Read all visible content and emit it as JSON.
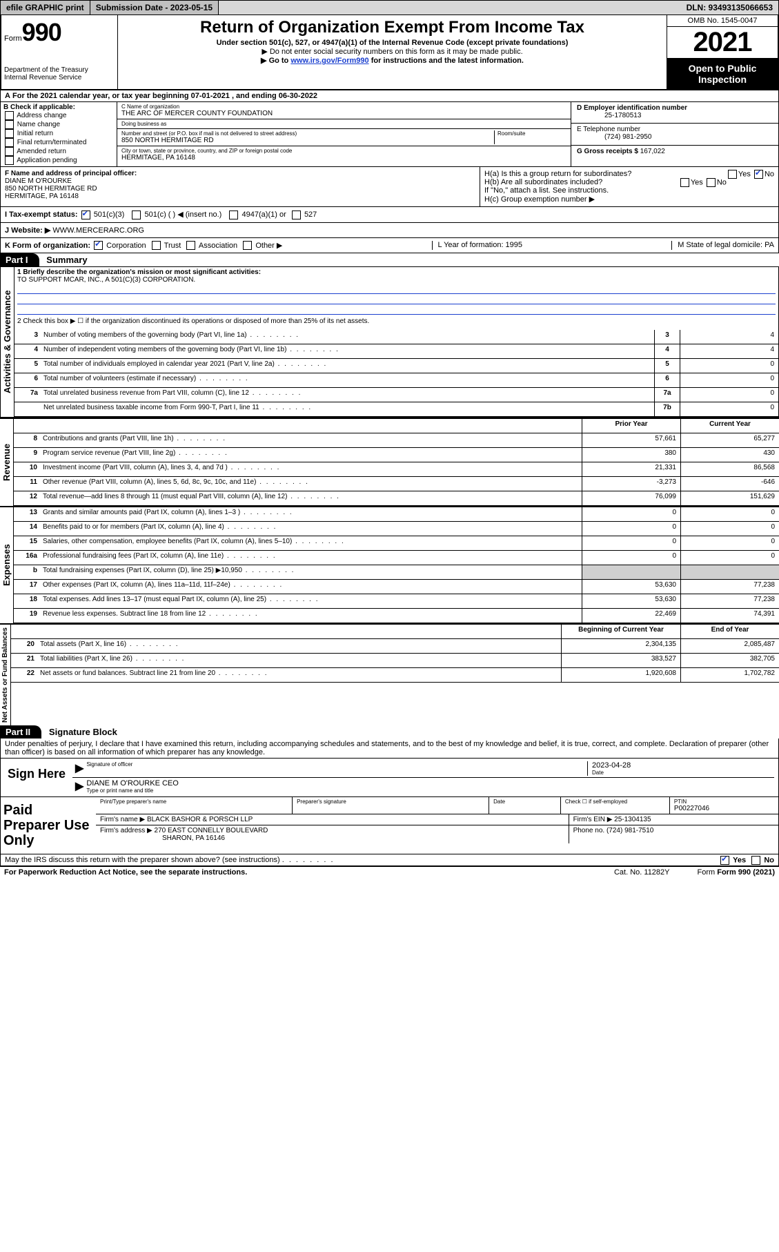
{
  "topbar": {
    "efile": "efile GRAPHIC print",
    "submission": "Submission Date - 2023-05-15",
    "dln": "DLN: 93493135066653"
  },
  "header": {
    "form_prefix": "Form",
    "form_num": "990",
    "dept": "Department of the Treasury",
    "irs": "Internal Revenue Service",
    "title": "Return of Organization Exempt From Income Tax",
    "sub": "Under section 501(c), 527, or 4947(a)(1) of the Internal Revenue Code (except private foundations)",
    "note1": "▶ Do not enter social security numbers on this form as it may be made public.",
    "note2_pre": "▶ Go to ",
    "note2_link": "www.irs.gov/Form990",
    "note2_post": " for instructions and the latest information.",
    "omb": "OMB No. 1545-0047",
    "year": "2021",
    "inspect": "Open to Public Inspection"
  },
  "rowA": "For the 2021 calendar year, or tax year beginning 07-01-2021  , and ending 06-30-2022",
  "boxB": {
    "label": "B Check if applicable:",
    "items": [
      "Address change",
      "Name change",
      "Initial return",
      "Final return/terminated",
      "Amended return",
      "Application pending"
    ]
  },
  "boxC": {
    "name_label": "C Name of organization",
    "name": "THE ARC OF MERCER COUNTY FOUNDATION",
    "dba_label": "Doing business as",
    "street_label": "Number and street (or P.O. box if mail is not delivered to street address)",
    "room_label": "Room/suite",
    "street": "850 NORTH HERMITAGE RD",
    "city_label": "City or town, state or province, country, and ZIP or foreign postal code",
    "city": "HERMITAGE, PA  16148"
  },
  "boxD": {
    "label": "D Employer identification number",
    "val": "25-1780513"
  },
  "boxE": {
    "label": "E Telephone number",
    "val": "(724) 981-2950"
  },
  "boxG": {
    "label": "G Gross receipts $",
    "val": "167,022"
  },
  "boxF": {
    "label": "F Name and address of principal officer:",
    "name": "DIANE M O'ROURKE",
    "addr1": "850 NORTH HERMITAGE RD",
    "addr2": "HERMITAGE, PA  16148"
  },
  "boxH": {
    "a": "H(a)  Is this a group return for subordinates?",
    "b": "H(b)  Are all subordinates included?",
    "b_note": "If \"No,\" attach a list. See instructions.",
    "c": "H(c)  Group exemption number ▶",
    "yes": "Yes",
    "no": "No"
  },
  "rowI": {
    "label": "I   Tax-exempt status:",
    "opts": [
      "501(c)(3)",
      "501(c) (   ) ◀ (insert no.)",
      "4947(a)(1) or",
      "527"
    ]
  },
  "rowJ": {
    "label": "J   Website: ▶",
    "val": "WWW.MERCERARC.ORG"
  },
  "rowK": {
    "label": "K Form of organization:",
    "opts": [
      "Corporation",
      "Trust",
      "Association",
      "Other ▶"
    ],
    "L": "L Year of formation: 1995",
    "M": "M State of legal domicile: PA"
  },
  "part1": {
    "num": "Part I",
    "title": "Summary"
  },
  "mission": {
    "q": "1   Briefly describe the organization's mission or most significant activities:",
    "a": "TO SUPPORT MCAR, INC., A 501(C)(3) CORPORATION."
  },
  "line2": "2   Check this box ▶ ☐  if the organization discontinued its operations or disposed of more than 25% of its net assets.",
  "gov_rows": [
    {
      "n": "3",
      "t": "Number of voting members of the governing body (Part VI, line 1a)",
      "box": "3",
      "v": "4"
    },
    {
      "n": "4",
      "t": "Number of independent voting members of the governing body (Part VI, line 1b)",
      "box": "4",
      "v": "4"
    },
    {
      "n": "5",
      "t": "Total number of individuals employed in calendar year 2021 (Part V, line 2a)",
      "box": "5",
      "v": "0"
    },
    {
      "n": "6",
      "t": "Total number of volunteers (estimate if necessary)",
      "box": "6",
      "v": "0"
    },
    {
      "n": "7a",
      "t": "Total unrelated business revenue from Part VIII, column (C), line 12",
      "box": "7a",
      "v": "0"
    },
    {
      "n": "",
      "t": "Net unrelated business taxable income from Form 990-T, Part I, line 11",
      "box": "7b",
      "v": "0"
    }
  ],
  "col_hdr": {
    "prior": "Prior Year",
    "curr": "Current Year",
    "boy": "Beginning of Current Year",
    "eoy": "End of Year"
  },
  "rev_rows": [
    {
      "n": "8",
      "t": "Contributions and grants (Part VIII, line 1h)",
      "p": "57,661",
      "c": "65,277"
    },
    {
      "n": "9",
      "t": "Program service revenue (Part VIII, line 2g)",
      "p": "380",
      "c": "430"
    },
    {
      "n": "10",
      "t": "Investment income (Part VIII, column (A), lines 3, 4, and 7d )",
      "p": "21,331",
      "c": "86,568"
    },
    {
      "n": "11",
      "t": "Other revenue (Part VIII, column (A), lines 5, 6d, 8c, 9c, 10c, and 11e)",
      "p": "-3,273",
      "c": "-646"
    },
    {
      "n": "12",
      "t": "Total revenue—add lines 8 through 11 (must equal Part VIII, column (A), line 12)",
      "p": "76,099",
      "c": "151,629"
    }
  ],
  "exp_rows": [
    {
      "n": "13",
      "t": "Grants and similar amounts paid (Part IX, column (A), lines 1–3 )",
      "p": "0",
      "c": "0"
    },
    {
      "n": "14",
      "t": "Benefits paid to or for members (Part IX, column (A), line 4)",
      "p": "0",
      "c": "0"
    },
    {
      "n": "15",
      "t": "Salaries, other compensation, employee benefits (Part IX, column (A), lines 5–10)",
      "p": "0",
      "c": "0"
    },
    {
      "n": "16a",
      "t": "Professional fundraising fees (Part IX, column (A), line 11e)",
      "p": "0",
      "c": "0"
    },
    {
      "n": "b",
      "t": "Total fundraising expenses (Part IX, column (D), line 25) ▶10,950",
      "p": "",
      "c": "",
      "shade": true
    },
    {
      "n": "17",
      "t": "Other expenses (Part IX, column (A), lines 11a–11d, 11f–24e)",
      "p": "53,630",
      "c": "77,238"
    },
    {
      "n": "18",
      "t": "Total expenses. Add lines 13–17 (must equal Part IX, column (A), line 25)",
      "p": "53,630",
      "c": "77,238"
    },
    {
      "n": "19",
      "t": "Revenue less expenses. Subtract line 18 from line 12",
      "p": "22,469",
      "c": "74,391"
    }
  ],
  "bal_rows": [
    {
      "n": "20",
      "t": "Total assets (Part X, line 16)",
      "p": "2,304,135",
      "c": "2,085,487"
    },
    {
      "n": "21",
      "t": "Total liabilities (Part X, line 26)",
      "p": "383,527",
      "c": "382,705"
    },
    {
      "n": "22",
      "t": "Net assets or fund balances. Subtract line 21 from line 20",
      "p": "1,920,608",
      "c": "1,702,782"
    }
  ],
  "vtabs": {
    "gov": "Activities & Governance",
    "rev": "Revenue",
    "exp": "Expenses",
    "bal": "Net Assets or Fund Balances"
  },
  "part2": {
    "num": "Part II",
    "title": "Signature Block"
  },
  "sig": {
    "decl": "Under penalties of perjury, I declare that I have examined this return, including accompanying schedules and statements, and to the best of my knowledge and belief, it is true, correct, and complete. Declaration of preparer (other than officer) is based on all information of which preparer has any knowledge.",
    "sign_here": "Sign Here",
    "sig_officer": "Signature of officer",
    "date": "2023-04-28",
    "date_lbl": "Date",
    "name": "DIANE M O'ROURKE  CEO",
    "name_lbl": "Type or print name and title"
  },
  "prep": {
    "title": "Paid Preparer Use Only",
    "h1": "Print/Type preparer's name",
    "h2": "Preparer's signature",
    "h3": "Date",
    "h4_pre": "Check ☐ if self-employed",
    "h5": "PTIN",
    "ptin": "P00227046",
    "firm_lbl": "Firm's name    ▶",
    "firm": "BLACK BASHOR & PORSCH LLP",
    "ein_lbl": "Firm's EIN ▶",
    "ein": "25-1304135",
    "addr_lbl": "Firm's address ▶",
    "addr": "270 EAST CONNELLY BOULEVARD",
    "addr2": "SHARON, PA  16146",
    "phone_lbl": "Phone no.",
    "phone": "(724) 981-7510"
  },
  "may_discuss": "May the IRS discuss this return with the preparer shown above? (see instructions)",
  "footer": {
    "pra": "For Paperwork Reduction Act Notice, see the separate instructions.",
    "cat": "Cat. No. 11282Y",
    "form": "Form 990 (2021)"
  }
}
